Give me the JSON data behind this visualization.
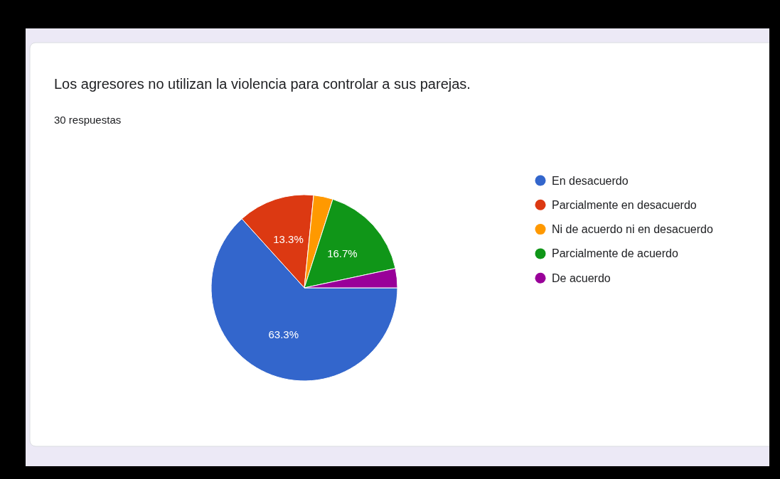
{
  "chart_data": {
    "type": "pie",
    "title": "Los agresores no utilizan la violencia para controlar a sus parejas.",
    "subtitle": "30 respuestas",
    "categories": [
      "En desacuerdo",
      "Parcialmente en desacuerdo",
      "Ni de acuerdo ni en desacuerdo",
      "Parcialmente de acuerdo",
      "De acuerdo"
    ],
    "values": [
      63.3,
      13.3,
      3.35,
      16.7,
      3.35
    ],
    "colors": [
      "#3366cc",
      "#dc3912",
      "#ff9900",
      "#109618",
      "#990099"
    ],
    "value_labels": [
      "63.3%",
      "13.3%",
      null,
      "16.7%",
      null
    ],
    "legend": "right"
  }
}
